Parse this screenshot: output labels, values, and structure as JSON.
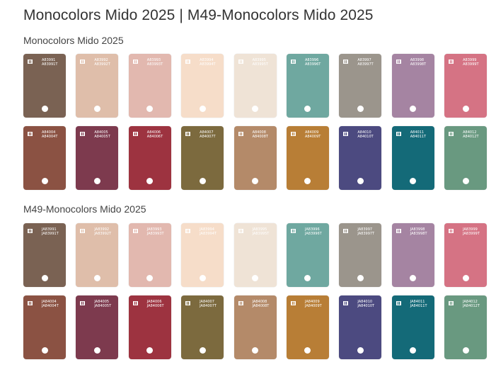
{
  "page": {
    "title": "Monocolors Mido 2025 | M49-Monocolors Mido 2025"
  },
  "sections": [
    {
      "title": "Monocolors Mido 2025",
      "swatches": [
        {
          "code": "A83991",
          "code_t": "A83991T",
          "color": "#7A6253"
        },
        {
          "code": "A83992",
          "code_t": "A83992T",
          "color": "#DFBEAA"
        },
        {
          "code": "A83993",
          "code_t": "A83993T",
          "color": "#E2B8AF"
        },
        {
          "code": "A83994",
          "code_t": "A83994T",
          "color": "#F6DDC9"
        },
        {
          "code": "A83995",
          "code_t": "A83995T",
          "color": "#EFE3D6"
        },
        {
          "code": "A83996",
          "code_t": "A83996T",
          "color": "#6FA8A0"
        },
        {
          "code": "A83997",
          "code_t": "A83997T",
          "color": "#9B958C"
        },
        {
          "code": "A83998",
          "code_t": "A83998T",
          "color": "#A584A2"
        },
        {
          "code": "A83999",
          "code_t": "A83999T",
          "color": "#D57384"
        },
        {
          "code": "A84004",
          "code_t": "A84004T",
          "color": "#8B5243"
        },
        {
          "code": "A84005",
          "code_t": "A84005T",
          "color": "#7D3A4E"
        },
        {
          "code": "A84006",
          "code_t": "A84006T",
          "color": "#9D3340"
        },
        {
          "code": "A84007",
          "code_t": "A84007T",
          "color": "#7C6A3E"
        },
        {
          "code": "A84008",
          "code_t": "A84008T",
          "color": "#B48A69"
        },
        {
          "code": "A84009",
          "code_t": "A84009T",
          "color": "#B87E36"
        },
        {
          "code": "A84010",
          "code_t": "A84010T",
          "color": "#4C4A80"
        },
        {
          "code": "A84011",
          "code_t": "A84011T",
          "color": "#146A78"
        },
        {
          "code": "A84012",
          "code_t": "A84012T",
          "color": "#699980"
        }
      ]
    },
    {
      "title": "M49-Monocolors Mido 2025",
      "swatches": [
        {
          "code": "JA83991",
          "code_t": "JA83991T",
          "color": "#7A6253"
        },
        {
          "code": "JA83992",
          "code_t": "JA83992T",
          "color": "#DFBEAA"
        },
        {
          "code": "JA83993",
          "code_t": "JA83993T",
          "color": "#E2B8AF"
        },
        {
          "code": "JA83994",
          "code_t": "JA83994T",
          "color": "#F6DDC9"
        },
        {
          "code": "JA83995",
          "code_t": "JA83995T",
          "color": "#EFE3D6"
        },
        {
          "code": "JA83996",
          "code_t": "JA83996T",
          "color": "#6FA8A0"
        },
        {
          "code": "JA83997",
          "code_t": "JA83997T",
          "color": "#9B958C"
        },
        {
          "code": "JA83998",
          "code_t": "JA83998T",
          "color": "#A584A2"
        },
        {
          "code": "JA83999",
          "code_t": "JA83999T",
          "color": "#D57384"
        },
        {
          "code": "JA84004",
          "code_t": "JA84004T",
          "color": "#8B5243"
        },
        {
          "code": "JA84005",
          "code_t": "JA84005T",
          "color": "#7D3A4E"
        },
        {
          "code": "JA84006",
          "code_t": "JA84006T",
          "color": "#9D3340"
        },
        {
          "code": "JA84007",
          "code_t": "JA84007T",
          "color": "#7C6A3E"
        },
        {
          "code": "JA84008",
          "code_t": "JA84008T",
          "color": "#B48A69"
        },
        {
          "code": "JA84009",
          "code_t": "JA84009T",
          "color": "#B87E36"
        },
        {
          "code": "JA84010",
          "code_t": "JA84010T",
          "color": "#4C4A80"
        },
        {
          "code": "JA84011",
          "code_t": "JA84011T",
          "color": "#146A78"
        },
        {
          "code": "JA84012",
          "code_t": "JA84012T",
          "color": "#699980"
        }
      ]
    }
  ]
}
